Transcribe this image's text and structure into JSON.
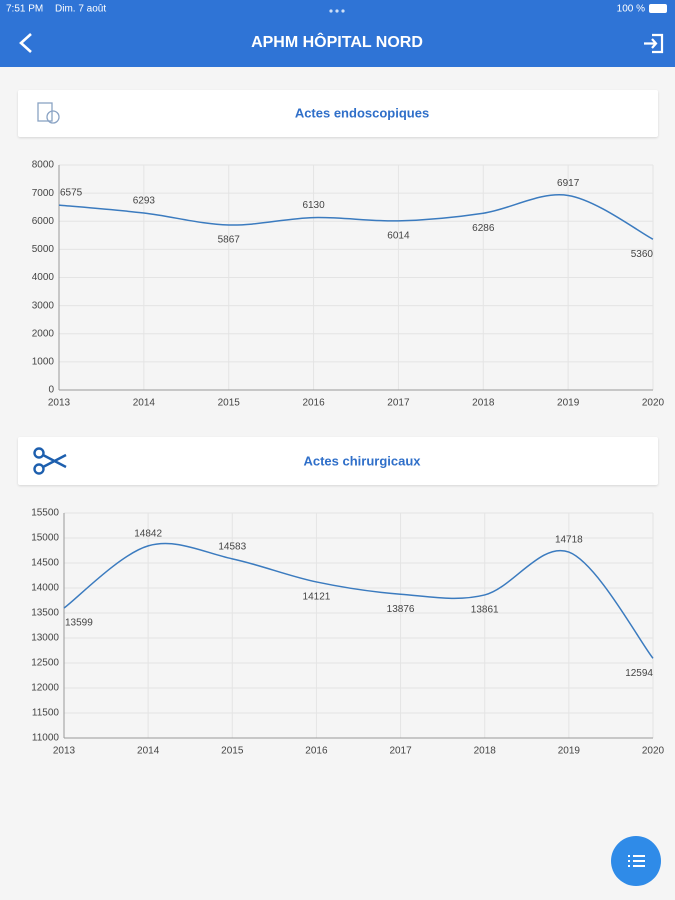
{
  "status_bar": {
    "time": "7:51 PM",
    "date": "Dim. 7 août",
    "battery": "100 %"
  },
  "header": {
    "title": "APHM HÔPITAL NORD"
  },
  "cards": [
    {
      "title": "Actes endoscopiques",
      "chart": {
        "type": "line",
        "categories": [
          "2013",
          "2014",
          "2015",
          "2016",
          "2017",
          "2018",
          "2019",
          "2020"
        ],
        "values": [
          6575,
          6293,
          5867,
          6130,
          6014,
          6286,
          6917,
          5360
        ],
        "color": "#3b7bbf",
        "ylim": [
          0,
          8000
        ],
        "yticks": [
          0,
          1000,
          2000,
          3000,
          4000,
          5000,
          6000,
          7000,
          8000
        ],
        "grid": true
      }
    },
    {
      "title": "Actes chirurgicaux",
      "chart": {
        "type": "line",
        "categories": [
          "2013",
          "2014",
          "2015",
          "2016",
          "2017",
          "2018",
          "2019",
          "2020"
        ],
        "values": [
          13599,
          14842,
          14583,
          14121,
          13876,
          13861,
          14718,
          12594
        ],
        "color": "#3b7bbf",
        "ylim": [
          11000,
          15500
        ],
        "yticks": [
          11000,
          11500,
          12000,
          12500,
          13000,
          13500,
          14000,
          14500,
          15000,
          15500
        ],
        "grid": true
      }
    }
  ]
}
